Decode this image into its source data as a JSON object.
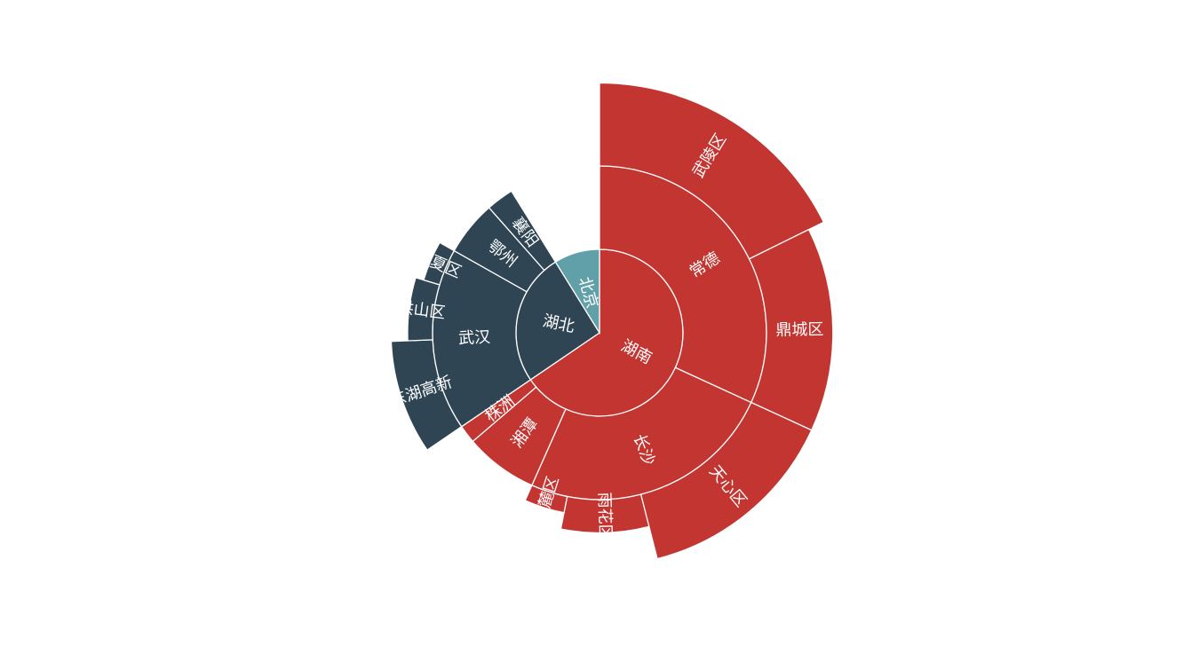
{
  "colors": {
    "湖南": "#c23531",
    "湖北": "#2f4554",
    "北京": "#61a0a8",
    "label": "#ffffff",
    "border": "#ffffff",
    "background": "#ffffff"
  },
  "chart_data": {
    "type": "sunburst",
    "title": "",
    "start": "12 o'clock",
    "direction": "clockwise",
    "label_rotation": "radial",
    "ring_values": {
      "level1": "provinces (inner circle)",
      "level2": "cities",
      "level3": "districts"
    },
    "data": [
      {
        "name": "湖南",
        "children": [
          {
            "name": "常德",
            "children": [
              {
                "name": "武陵区",
                "value": 5
              },
              {
                "name": "鼎城区",
                "value": 4
              }
            ]
          },
          {
            "name": "长沙",
            "children": [
              {
                "name": "天心区",
                "value": 4
              },
              {
                "name": "雨花区",
                "value": 2
              },
              {
                "name": "岳麓区",
                "value": 1
              }
            ]
          },
          {
            "name": "湘潭",
            "value": 2
          },
          {
            "name": "株洲",
            "value": 0.5
          }
        ]
      },
      {
        "name": "湖北",
        "children": [
          {
            "name": "武汉",
            "children": [
              {
                "name": "东湖高新",
                "value": 2.5
              },
              {
                "name": "洪山区",
                "value": 1.5
              },
              {
                "name": "江夏区",
                "value": 1
              }
            ]
          },
          {
            "name": "鄂州",
            "value": 1.5
          },
          {
            "name": "襄阳",
            "value": 0.75
          }
        ]
      },
      {
        "name": "北京",
        "value": 2.5
      }
    ]
  }
}
